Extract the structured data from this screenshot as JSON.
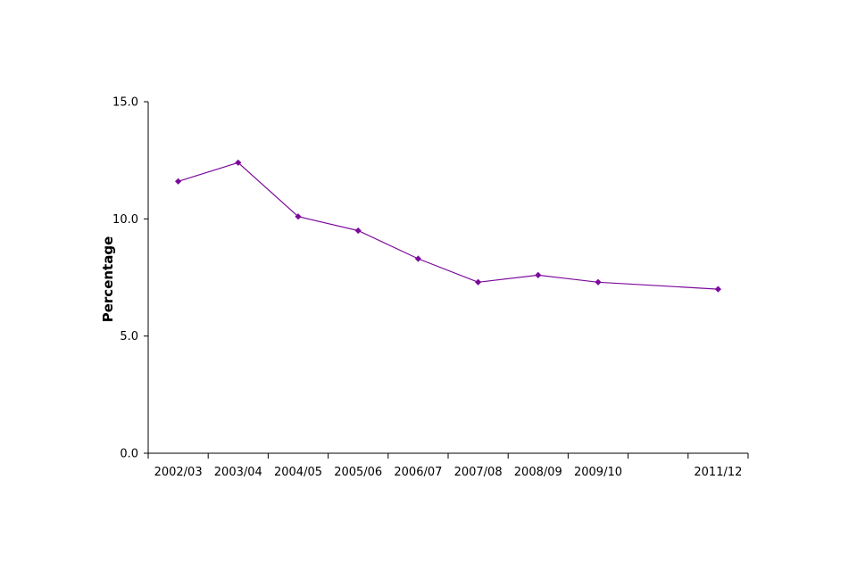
{
  "chart_data": {
    "type": "line",
    "title": "",
    "xlabel": "",
    "ylabel": "Percentage",
    "ylim": [
      0,
      15
    ],
    "yticks": [
      "0.0",
      "5.0",
      "10.0",
      "15.0"
    ],
    "categories": [
      "2002/03",
      "2003/04",
      "2004/05",
      "2005/06",
      "2006/07",
      "2007/08",
      "2008/09",
      "2009/10",
      "",
      "2011/12"
    ],
    "series": [
      {
        "values": [
          11.6,
          12.4,
          10.1,
          9.5,
          8.3,
          7.3,
          7.6,
          7.3,
          null,
          7.0
        ],
        "color": "#7B0A9B"
      }
    ],
    "grid": false,
    "legend": "none"
  }
}
